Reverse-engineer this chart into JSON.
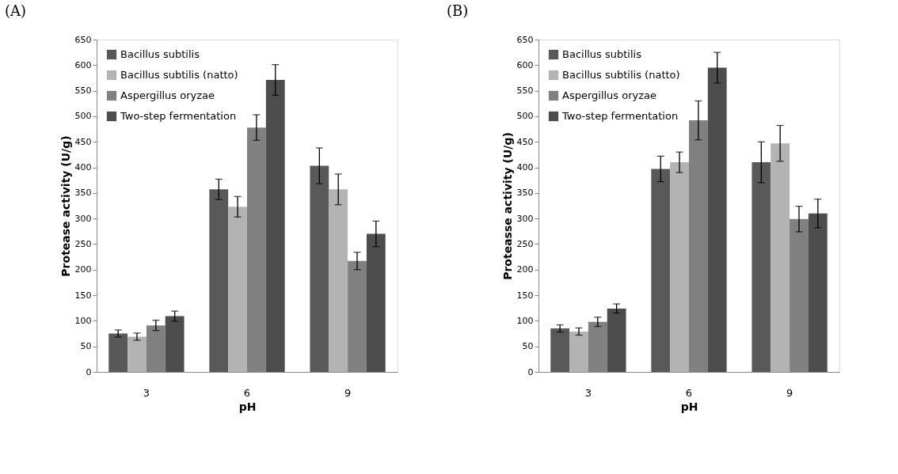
{
  "chart_data": [
    {
      "type": "bar",
      "title": "(A)",
      "xlabel": "pH",
      "ylabel": "Protease activity (U/g)",
      "categories": [
        "3",
        "6",
        "9"
      ],
      "ylim": [
        0,
        650
      ],
      "yticks": [
        0,
        50,
        100,
        150,
        200,
        250,
        300,
        350,
        400,
        450,
        500,
        550,
        600,
        650
      ],
      "grid": false,
      "legend": "top left",
      "series": [
        {
          "name": "Bacillus subtilis",
          "color": "#595959",
          "values": [
            75,
            357,
            403
          ],
          "errors": [
            7,
            20,
            35
          ]
        },
        {
          "name": "Bacillus subtilis (natto)",
          "color": "#b3b3b3",
          "values": [
            69,
            323,
            357
          ],
          "errors": [
            7,
            20,
            30
          ]
        },
        {
          "name": "Aspergillus oryzae",
          "color": "#808080",
          "values": [
            91,
            478,
            217
          ],
          "errors": [
            10,
            25,
            17
          ]
        },
        {
          "name": "Two-step fermentation",
          "color": "#4d4d4d",
          "values": [
            109,
            571,
            270
          ],
          "errors": [
            10,
            30,
            25
          ]
        }
      ]
    },
    {
      "type": "bar",
      "title": "(B)",
      "xlabel": "pH",
      "ylabel": "Proteasse activity (U/g)",
      "categories": [
        "3",
        "6",
        "9"
      ],
      "ylim": [
        0,
        650
      ],
      "yticks": [
        0,
        50,
        100,
        150,
        200,
        250,
        300,
        350,
        400,
        450,
        500,
        550,
        600,
        650
      ],
      "grid": false,
      "legend": "top left",
      "series": [
        {
          "name": "Bacillus subtilis",
          "color": "#595959",
          "values": [
            85,
            397,
            410
          ],
          "errors": [
            7,
            25,
            40
          ]
        },
        {
          "name": "Bacillus subtilis (natto)",
          "color": "#b3b3b3",
          "values": [
            79,
            410,
            447
          ],
          "errors": [
            7,
            20,
            35
          ]
        },
        {
          "name": "Aspergillus oryzae",
          "color": "#808080",
          "values": [
            98,
            492,
            299
          ],
          "errors": [
            9,
            38,
            25
          ]
        },
        {
          "name": "Two-step fermentation",
          "color": "#4d4d4d",
          "values": [
            124,
            595,
            310
          ],
          "errors": [
            9,
            30,
            28
          ]
        }
      ]
    }
  ]
}
